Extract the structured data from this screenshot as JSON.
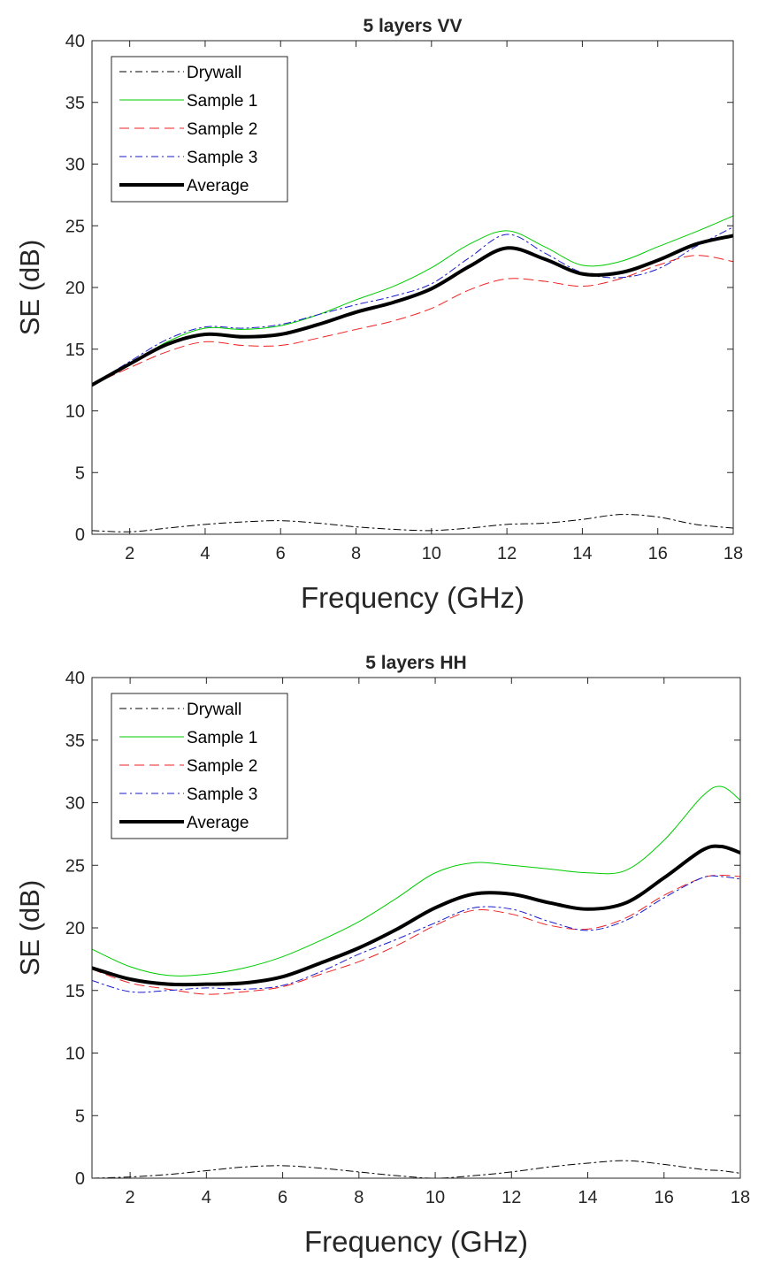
{
  "chart_data": [
    {
      "type": "line",
      "title": "5 layers VV",
      "xlabel": "Frequency (GHz)",
      "ylabel": "SE (dB)",
      "xlim": [
        1,
        18
      ],
      "ylim": [
        0,
        40
      ],
      "xticks": [
        "2",
        "4",
        "6",
        "8",
        "10",
        "12",
        "14",
        "16",
        "18"
      ],
      "yticks": [
        "0",
        "5",
        "10",
        "15",
        "20",
        "25",
        "30",
        "35",
        "40"
      ],
      "grid": false,
      "legend_position": "top-left",
      "x": [
        1,
        2,
        3,
        4,
        5,
        6,
        7,
        8,
        9,
        10,
        11,
        12,
        13,
        14,
        15,
        16,
        17,
        18
      ],
      "series": [
        {
          "name": "Drywall",
          "color": "#000000",
          "style": "dashdot",
          "width": 1,
          "values": [
            0.3,
            0.2,
            0.5,
            0.8,
            1.0,
            1.1,
            0.9,
            0.6,
            0.4,
            0.3,
            0.5,
            0.8,
            0.9,
            1.2,
            1.6,
            1.4,
            0.8,
            0.5
          ]
        },
        {
          "name": "Sample 1",
          "color": "#00cc00",
          "style": "solid",
          "width": 1,
          "values": [
            12.1,
            13.8,
            15.6,
            16.7,
            16.6,
            16.9,
            17.8,
            19.0,
            20.1,
            21.6,
            23.5,
            24.6,
            23.3,
            21.8,
            22.1,
            23.3,
            24.5,
            25.8
          ]
        },
        {
          "name": "Sample 2",
          "color": "#ee2222",
          "style": "dashed",
          "width": 1,
          "values": [
            12.1,
            13.5,
            14.8,
            15.6,
            15.3,
            15.3,
            15.9,
            16.6,
            17.3,
            18.3,
            19.8,
            20.7,
            20.5,
            20.1,
            20.7,
            21.8,
            22.6,
            22.1
          ]
        },
        {
          "name": "Sample 3",
          "color": "#1a1acc",
          "style": "dashdot",
          "width": 1,
          "values": [
            12.1,
            14.0,
            15.8,
            16.8,
            16.7,
            17.0,
            17.8,
            18.6,
            19.3,
            20.3,
            22.4,
            24.3,
            22.8,
            21.2,
            20.8,
            21.5,
            23.3,
            24.9
          ]
        },
        {
          "name": "Average",
          "color": "#000000",
          "style": "solid",
          "width": 4,
          "values": [
            12.1,
            13.8,
            15.4,
            16.2,
            16.0,
            16.2,
            17.0,
            18.0,
            18.8,
            19.9,
            21.7,
            23.2,
            22.3,
            21.1,
            21.2,
            22.2,
            23.5,
            24.2
          ]
        }
      ]
    },
    {
      "type": "line",
      "title": "5 layers HH",
      "xlabel": "Frequency (GHz)",
      "ylabel": "SE (dB)",
      "xlim": [
        1,
        18
      ],
      "ylim": [
        0,
        40
      ],
      "xticks": [
        "2",
        "4",
        "6",
        "8",
        "10",
        "12",
        "14",
        "16",
        "18"
      ],
      "yticks": [
        "0",
        "5",
        "10",
        "15",
        "20",
        "25",
        "30",
        "35",
        "40"
      ],
      "grid": false,
      "legend_position": "top-left",
      "x": [
        1,
        2,
        3,
        4,
        5,
        6,
        7,
        8,
        9,
        10,
        11,
        12,
        13,
        14,
        15,
        16,
        17,
        17.5,
        18
      ],
      "series": [
        {
          "name": "Drywall",
          "color": "#000000",
          "style": "dashdot",
          "width": 1,
          "values": [
            0.0,
            0.1,
            0.3,
            0.6,
            0.9,
            1.0,
            0.8,
            0.5,
            0.2,
            0.0,
            0.2,
            0.5,
            0.9,
            1.2,
            1.4,
            1.1,
            0.7,
            0.6,
            0.4
          ]
        },
        {
          "name": "Sample 1",
          "color": "#00cc00",
          "style": "solid",
          "width": 1,
          "values": [
            18.3,
            16.9,
            16.2,
            16.3,
            16.8,
            17.7,
            19.0,
            20.5,
            22.4,
            24.4,
            25.2,
            25.0,
            24.7,
            24.4,
            24.6,
            27.0,
            30.5,
            31.3,
            30.2
          ]
        },
        {
          "name": "Sample 2",
          "color": "#ee2222",
          "style": "dashed",
          "width": 1,
          "values": [
            16.7,
            15.6,
            15.1,
            14.7,
            14.9,
            15.3,
            16.3,
            17.3,
            18.6,
            20.2,
            21.4,
            21.1,
            20.2,
            19.9,
            20.8,
            22.6,
            24.0,
            24.2,
            24.1
          ]
        },
        {
          "name": "Sample 3",
          "color": "#1a1acc",
          "style": "dashdot",
          "width": 1,
          "values": [
            15.8,
            14.9,
            15.0,
            15.2,
            15.1,
            15.4,
            16.5,
            17.9,
            19.1,
            20.4,
            21.6,
            21.5,
            20.5,
            19.8,
            20.6,
            22.4,
            24.0,
            24.1,
            23.9
          ]
        },
        {
          "name": "Average",
          "color": "#000000",
          "style": "solid",
          "width": 4,
          "values": [
            16.8,
            15.9,
            15.5,
            15.5,
            15.6,
            16.1,
            17.2,
            18.4,
            19.9,
            21.6,
            22.7,
            22.7,
            22.0,
            21.5,
            22.0,
            24.0,
            26.2,
            26.5,
            26.0
          ]
        }
      ]
    }
  ]
}
